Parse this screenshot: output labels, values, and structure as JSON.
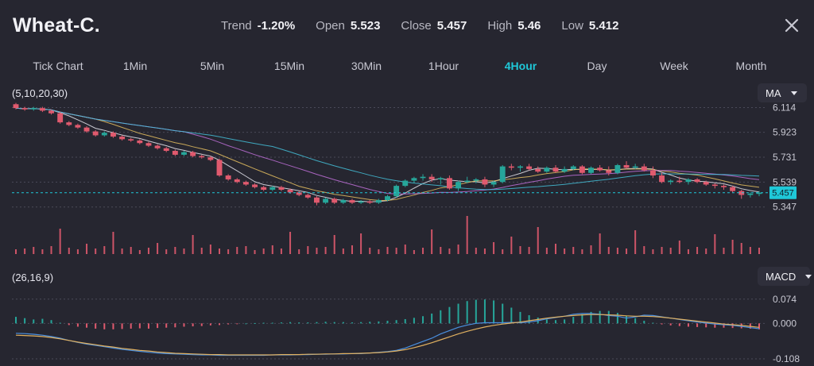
{
  "header": {
    "title": "Wheat-C.",
    "stats": [
      {
        "label": "Trend",
        "value": "-1.20%"
      },
      {
        "label": "Open",
        "value": "5.523"
      },
      {
        "label": "Close",
        "value": "5.457"
      },
      {
        "label": "High",
        "value": "5.46"
      },
      {
        "label": "Low",
        "value": "5.412"
      }
    ]
  },
  "tabs": [
    "Tick Chart",
    "1Min",
    "5Min",
    "15Min",
    "30Min",
    "1Hour",
    "4Hour",
    "Day",
    "Week",
    "Month"
  ],
  "active_tab": "4Hour",
  "main_panel": {
    "params": "(5,10,20,30)",
    "indicator": "MA"
  },
  "macd_panel": {
    "params": "(26,16,9)",
    "indicator": "MACD"
  },
  "colors": {
    "up": "#26a69a",
    "down": "#e05a6e",
    "accent": "#1fc8d8",
    "background": "#262630"
  },
  "chart_data": [
    {
      "type": "candlestick",
      "y_ticks": [
        "6.114",
        "5.923",
        "5.731",
        "5.539",
        "5.347"
      ],
      "last_price": "5.457",
      "ylim": [
        5.29,
        6.16
      ],
      "ohlc": [
        [
          6.14,
          6.15,
          6.1,
          6.11
        ],
        [
          6.11,
          6.12,
          6.09,
          6.1
        ],
        [
          6.1,
          6.12,
          6.09,
          6.11
        ],
        [
          6.11,
          6.12,
          6.08,
          6.09
        ],
        [
          6.09,
          6.1,
          6.06,
          6.07
        ],
        [
          6.07,
          6.08,
          5.99,
          6.0
        ],
        [
          6.0,
          6.01,
          5.97,
          5.98
        ],
        [
          5.98,
          5.99,
          5.95,
          5.96
        ],
        [
          5.96,
          5.97,
          5.92,
          5.93
        ],
        [
          5.93,
          5.94,
          5.89,
          5.9
        ],
        [
          5.9,
          5.93,
          5.89,
          5.92
        ],
        [
          5.92,
          5.93,
          5.88,
          5.89
        ],
        [
          5.89,
          5.9,
          5.86,
          5.87
        ],
        [
          5.87,
          5.88,
          5.85,
          5.86
        ],
        [
          5.86,
          5.87,
          5.83,
          5.84
        ],
        [
          5.84,
          5.85,
          5.81,
          5.82
        ],
        [
          5.82,
          5.83,
          5.79,
          5.8
        ],
        [
          5.8,
          5.81,
          5.77,
          5.78
        ],
        [
          5.78,
          5.79,
          5.74,
          5.75
        ],
        [
          5.75,
          5.78,
          5.74,
          5.77
        ],
        [
          5.77,
          5.78,
          5.73,
          5.74
        ],
        [
          5.74,
          5.75,
          5.72,
          5.73
        ],
        [
          5.73,
          5.74,
          5.7,
          5.71
        ],
        [
          5.71,
          5.72,
          5.58,
          5.59
        ],
        [
          5.59,
          5.6,
          5.55,
          5.56
        ],
        [
          5.56,
          5.57,
          5.53,
          5.54
        ],
        [
          5.54,
          5.55,
          5.51,
          5.52
        ],
        [
          5.52,
          5.53,
          5.49,
          5.5
        ],
        [
          5.5,
          5.51,
          5.47,
          5.48
        ],
        [
          5.48,
          5.51,
          5.47,
          5.5
        ],
        [
          5.5,
          5.51,
          5.47,
          5.48
        ],
        [
          5.48,
          5.49,
          5.45,
          5.46
        ],
        [
          5.46,
          5.47,
          5.43,
          5.44
        ],
        [
          5.44,
          5.45,
          5.41,
          5.42
        ],
        [
          5.42,
          5.43,
          5.36,
          5.38
        ],
        [
          5.38,
          5.42,
          5.37,
          5.41
        ],
        [
          5.41,
          5.42,
          5.37,
          5.38
        ],
        [
          5.38,
          5.41,
          5.37,
          5.4
        ],
        [
          5.4,
          5.41,
          5.37,
          5.38
        ],
        [
          5.38,
          5.4,
          5.37,
          5.39
        ],
        [
          5.39,
          5.4,
          5.37,
          5.38
        ],
        [
          5.38,
          5.41,
          5.37,
          5.4
        ],
        [
          5.4,
          5.44,
          5.39,
          5.43
        ],
        [
          5.43,
          5.52,
          5.42,
          5.51
        ],
        [
          5.51,
          5.56,
          5.5,
          5.55
        ],
        [
          5.55,
          5.58,
          5.53,
          5.57
        ],
        [
          5.57,
          5.6,
          5.55,
          5.58
        ],
        [
          5.58,
          5.6,
          5.54,
          5.56
        ],
        [
          5.56,
          5.58,
          5.52,
          5.57
        ],
        [
          5.57,
          5.59,
          5.48,
          5.49
        ],
        [
          5.49,
          5.55,
          5.47,
          5.54
        ],
        [
          5.54,
          5.58,
          5.53,
          5.55
        ],
        [
          5.55,
          5.57,
          5.53,
          5.56
        ],
        [
          5.56,
          5.58,
          5.5,
          5.52
        ],
        [
          5.52,
          5.55,
          5.5,
          5.54
        ],
        [
          5.54,
          5.67,
          5.53,
          5.66
        ],
        [
          5.66,
          5.68,
          5.63,
          5.65
        ],
        [
          5.65,
          5.67,
          5.62,
          5.66
        ],
        [
          5.66,
          5.68,
          5.63,
          5.64
        ],
        [
          5.64,
          5.66,
          5.61,
          5.62
        ],
        [
          5.62,
          5.66,
          5.61,
          5.65
        ],
        [
          5.65,
          5.67,
          5.61,
          5.62
        ],
        [
          5.62,
          5.66,
          5.61,
          5.64
        ],
        [
          5.64,
          5.67,
          5.63,
          5.66
        ],
        [
          5.66,
          5.67,
          5.6,
          5.61
        ],
        [
          5.61,
          5.66,
          5.6,
          5.65
        ],
        [
          5.65,
          5.67,
          5.62,
          5.63
        ],
        [
          5.63,
          5.66,
          5.59,
          5.61
        ],
        [
          5.61,
          5.68,
          5.6,
          5.67
        ],
        [
          5.67,
          5.7,
          5.64,
          5.65
        ],
        [
          5.65,
          5.68,
          5.64,
          5.66
        ],
        [
          5.66,
          5.68,
          5.62,
          5.63
        ],
        [
          5.63,
          5.66,
          5.57,
          5.59
        ],
        [
          5.59,
          5.61,
          5.53,
          5.54
        ],
        [
          5.54,
          5.56,
          5.52,
          5.55
        ],
        [
          5.55,
          5.58,
          5.53,
          5.54
        ],
        [
          5.54,
          5.57,
          5.52,
          5.56
        ],
        [
          5.56,
          5.57,
          5.53,
          5.54
        ],
        [
          5.54,
          5.55,
          5.51,
          5.52
        ],
        [
          5.52,
          5.53,
          5.49,
          5.51
        ],
        [
          5.51,
          5.52,
          5.48,
          5.5
        ],
        [
          5.5,
          5.51,
          5.46,
          5.47
        ],
        [
          5.47,
          5.48,
          5.41,
          5.44
        ],
        [
          5.44,
          5.46,
          5.42,
          5.45
        ],
        [
          5.45,
          5.47,
          5.43,
          5.457
        ]
      ]
    },
    {
      "type": "bar",
      "series_name": "volume",
      "values": [
        6,
        7,
        9,
        6,
        10,
        32,
        8,
        6,
        13,
        7,
        10,
        28,
        7,
        9,
        5,
        8,
        14,
        6,
        9,
        7,
        24,
        8,
        12,
        7,
        6,
        9,
        10,
        5,
        7,
        11,
        7,
        28,
        6,
        10,
        8,
        9,
        24,
        7,
        11,
        26,
        8,
        6,
        9,
        8,
        12,
        5,
        8,
        31,
        9,
        7,
        12,
        48,
        8,
        7,
        15,
        6,
        22,
        10,
        9,
        34,
        8,
        13,
        7,
        9,
        6,
        11,
        26,
        9,
        8,
        7,
        30,
        10,
        6,
        9,
        8,
        17,
        6,
        9,
        7,
        25,
        8,
        18,
        14,
        9,
        8
      ],
      "ylim": [
        0,
        52
      ]
    },
    {
      "type": "bar",
      "series_name": "MACD",
      "y_ticks": [
        "0.074",
        "0.000",
        "-0.108"
      ],
      "ylim": [
        -0.108,
        0.1
      ],
      "values": [
        0.02,
        0.016,
        0.012,
        0.014,
        0.01,
        0.002,
        -0.005,
        -0.01,
        -0.013,
        -0.016,
        -0.018,
        -0.018,
        -0.017,
        -0.016,
        -0.015,
        -0.016,
        -0.014,
        -0.013,
        -0.012,
        -0.01,
        -0.009,
        -0.008,
        -0.006,
        -0.005,
        -0.003,
        -0.002,
        0.0,
        0.001,
        0.002,
        0.002,
        0.003,
        0.004,
        0.003,
        0.003,
        0.004,
        0.005,
        0.004,
        0.004,
        0.003,
        0.004,
        0.005,
        0.006,
        0.008,
        0.01,
        0.013,
        0.017,
        0.022,
        0.03,
        0.04,
        0.05,
        0.06,
        0.068,
        0.072,
        0.073,
        0.07,
        0.06,
        0.048,
        0.035,
        0.025,
        0.018,
        0.012,
        0.01,
        0.012,
        0.02,
        0.028,
        0.035,
        0.038,
        0.038,
        0.032,
        0.024,
        0.016,
        0.008,
        0.002,
        -0.003,
        -0.006,
        -0.008,
        -0.01,
        -0.011,
        -0.012,
        -0.013,
        -0.013,
        -0.014,
        -0.015,
        -0.016,
        -0.018
      ],
      "lines": [
        [
          -0.03,
          -0.031,
          -0.033,
          -0.036,
          -0.04,
          -0.045,
          -0.052,
          -0.058,
          -0.063,
          -0.067,
          -0.071,
          -0.075,
          -0.079,
          -0.082,
          -0.085,
          -0.088,
          -0.09,
          -0.092,
          -0.093,
          -0.094,
          -0.095,
          -0.096,
          -0.096,
          -0.097,
          -0.097,
          -0.097,
          -0.097,
          -0.097,
          -0.097,
          -0.096,
          -0.096,
          -0.096,
          -0.095,
          -0.095,
          -0.094,
          -0.094,
          -0.093,
          -0.093,
          -0.092,
          -0.092,
          -0.09,
          -0.088,
          -0.086,
          -0.082,
          -0.075,
          -0.065,
          -0.055,
          -0.045,
          -0.032,
          -0.022,
          -0.012,
          -0.005,
          0.0,
          0.002,
          0.002,
          0.002,
          0.003,
          0.002,
          0.004,
          0.008,
          0.014,
          0.018,
          0.022,
          0.028,
          0.03,
          0.03,
          0.028,
          0.024,
          0.022,
          0.016,
          0.02,
          0.025,
          0.024,
          0.02,
          0.016,
          0.012,
          0.008,
          0.004,
          0.001,
          -0.002,
          -0.004,
          -0.006,
          -0.009,
          -0.013,
          -0.016
        ],
        [
          -0.036,
          -0.037,
          -0.038,
          -0.04,
          -0.043,
          -0.047,
          -0.052,
          -0.057,
          -0.061,
          -0.065,
          -0.069,
          -0.072,
          -0.076,
          -0.079,
          -0.082,
          -0.084,
          -0.087,
          -0.089,
          -0.091,
          -0.092,
          -0.093,
          -0.094,
          -0.095,
          -0.095,
          -0.096,
          -0.096,
          -0.096,
          -0.096,
          -0.096,
          -0.096,
          -0.095,
          -0.095,
          -0.095,
          -0.094,
          -0.094,
          -0.093,
          -0.093,
          -0.092,
          -0.092,
          -0.091,
          -0.09,
          -0.089,
          -0.087,
          -0.084,
          -0.08,
          -0.074,
          -0.067,
          -0.059,
          -0.05,
          -0.041,
          -0.032,
          -0.024,
          -0.017,
          -0.011,
          -0.006,
          -0.002,
          0.001,
          0.004,
          0.008,
          0.012,
          0.016,
          0.019,
          0.022,
          0.024,
          0.026,
          0.027,
          0.027,
          0.026,
          0.025,
          0.023,
          0.022,
          0.022,
          0.021,
          0.019,
          0.016,
          0.013,
          0.01,
          0.007,
          0.004,
          0.001,
          -0.002,
          -0.004,
          -0.006,
          -0.009,
          -0.012
        ]
      ]
    }
  ]
}
